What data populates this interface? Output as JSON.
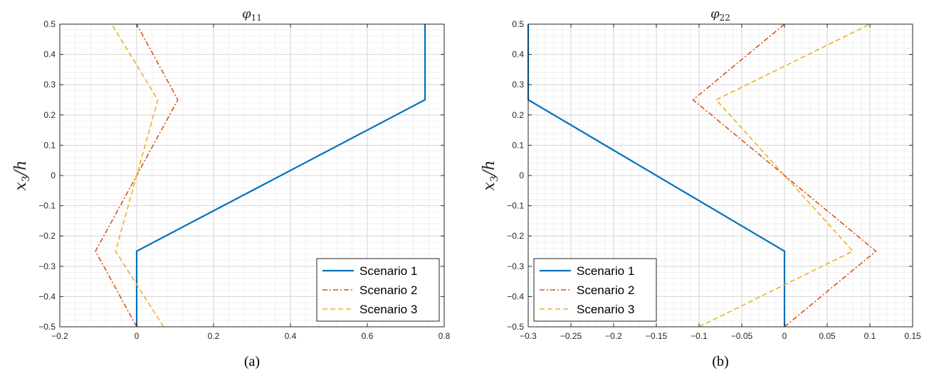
{
  "chart_data": [
    {
      "type": "line",
      "title": "φ",
      "title_sub": "11",
      "ylabel": "x",
      "ylabel_sub": "3",
      "ylabel_tail": "/h",
      "xlabel": "",
      "panel_label": "(a)",
      "xlim": [
        -0.2,
        0.8
      ],
      "ylim": [
        -0.5,
        0.5
      ],
      "x_ticks": [
        -0.2,
        0,
        0.2,
        0.4,
        0.6,
        0.8
      ],
      "x_tick_labels": [
        "−0.2",
        "0",
        "0.2",
        "0.4",
        "0.6",
        "0.8"
      ],
      "y_ticks": [
        -0.5,
        -0.4,
        -0.3,
        -0.2,
        -0.1,
        0,
        0.1,
        0.2,
        0.3,
        0.4,
        0.5
      ],
      "y_tick_labels": [
        "−0.5",
        "−0.4",
        "−0.3",
        "−0.2",
        "−0.1",
        "0",
        "0.1",
        "0.2",
        "0.3",
        "0.4",
        "0.5"
      ],
      "grid": true,
      "minor_grid": true,
      "legend_position": "bottom-right",
      "series": [
        {
          "name": "Scenario 1",
          "color": "#0072BD",
          "dash": "solid",
          "x": [
            0,
            0,
            0.75,
            0.75
          ],
          "y": [
            -0.5,
            -0.25,
            0.25,
            0.5
          ]
        },
        {
          "name": "Scenario 2",
          "color": "#D95319",
          "dash": "dashdot",
          "x": [
            0,
            -0.107,
            0.107,
            0
          ],
          "y": [
            -0.5,
            -0.25,
            0.25,
            0.5
          ]
        },
        {
          "name": "Scenario 3",
          "color": "#EDB120",
          "dash": "dashed",
          "x": [
            0.07,
            -0.055,
            0.055,
            -0.065
          ],
          "y": [
            -0.5,
            -0.25,
            0.25,
            0.5
          ]
        }
      ]
    },
    {
      "type": "line",
      "title": "φ",
      "title_sub": "22",
      "ylabel": "x",
      "ylabel_sub": "3",
      "ylabel_tail": "/h",
      "xlabel": "",
      "panel_label": "(b)",
      "xlim": [
        -0.3,
        0.15
      ],
      "ylim": [
        -0.5,
        0.5
      ],
      "x_ticks": [
        -0.3,
        -0.25,
        -0.2,
        -0.15,
        -0.1,
        -0.05,
        0,
        0.05,
        0.1,
        0.15
      ],
      "x_tick_labels": [
        "−0.3",
        "−0.25",
        "−0.2",
        "−0.15",
        "−0.1",
        "−0.05",
        "0",
        "0.05",
        "0.1",
        "0.15"
      ],
      "y_ticks": [
        -0.5,
        -0.4,
        -0.3,
        -0.2,
        -0.1,
        0,
        0.1,
        0.2,
        0.3,
        0.4,
        0.5
      ],
      "y_tick_labels": [
        "−0.5",
        "−0.4",
        "−0.3",
        "−0.2",
        "−0.1",
        "0",
        "0.1",
        "0.2",
        "0.3",
        "0.4",
        "0.5"
      ],
      "grid": true,
      "minor_grid": true,
      "legend_position": "bottom-left",
      "series": [
        {
          "name": "Scenario 1",
          "color": "#0072BD",
          "dash": "solid",
          "x": [
            0,
            0,
            -0.3,
            -0.3
          ],
          "y": [
            -0.5,
            -0.25,
            0.25,
            0.5
          ]
        },
        {
          "name": "Scenario 2",
          "color": "#D95319",
          "dash": "dashdot",
          "x": [
            0,
            0.107,
            -0.107,
            0
          ],
          "y": [
            -0.5,
            -0.25,
            0.25,
            0.5
          ]
        },
        {
          "name": "Scenario 3",
          "color": "#EDB120",
          "dash": "dashed",
          "x": [
            -0.1,
            0.08,
            -0.08,
            0.1
          ],
          "y": [
            -0.5,
            -0.25,
            0.25,
            0.5
          ]
        }
      ]
    }
  ]
}
